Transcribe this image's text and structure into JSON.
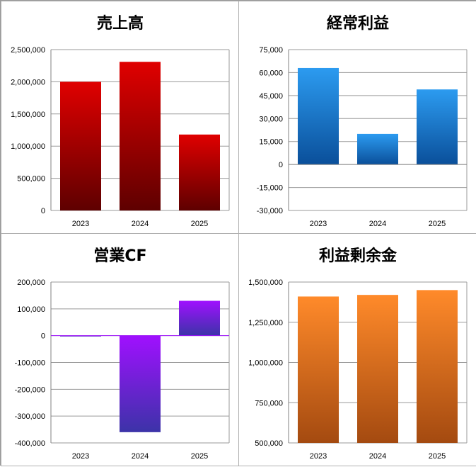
{
  "chart_data": [
    {
      "type": "bar",
      "title": "売上高",
      "categories": [
        "2023",
        "2024",
        "2025"
      ],
      "values": [
        2000000,
        2310000,
        1180000
      ],
      "ylim": [
        0,
        2500000
      ],
      "yticks": [
        "2,500,000",
        "2,000,000",
        "1,500,000",
        "1,000,000",
        "500,000",
        "0"
      ],
      "colors": {
        "top": "#e00000",
        "bottom": "#5e0000"
      },
      "grid": true
    },
    {
      "type": "bar",
      "title": "経常利益",
      "categories": [
        "2023",
        "2024",
        "2025"
      ],
      "values": [
        63000,
        20000,
        49000
      ],
      "ylim": [
        -30000,
        75000
      ],
      "yticks": [
        "75,000",
        "60,000",
        "45,000",
        "30,000",
        "15,000",
        "0",
        "-15,000",
        "-30,000"
      ],
      "colors": {
        "top": "#2c9bf0",
        "bottom": "#0a4f9a"
      },
      "grid": true
    },
    {
      "type": "bar",
      "title": "営業CF",
      "categories": [
        "2023",
        "2024",
        "2025"
      ],
      "values": [
        -3000,
        -360000,
        130000
      ],
      "ylim": [
        -400000,
        200000
      ],
      "yticks": [
        "200,000",
        "100,000",
        "0",
        "-100,000",
        "-200,000",
        "-300,000",
        "-400,000"
      ],
      "colors": {
        "top": "#a010ff",
        "bottom": "#3c33a8"
      },
      "grid": true
    },
    {
      "type": "bar",
      "title": "利益剰余金",
      "categories": [
        "2023",
        "2024",
        "2025"
      ],
      "values": [
        1410000,
        1420000,
        1450000
      ],
      "ylim": [
        500000,
        1500000
      ],
      "yticks": [
        "1,500,000",
        "1,250,000",
        "1,000,000",
        "750,000",
        "500,000"
      ],
      "colors": {
        "top": "#ff8a2a",
        "bottom": "#a44a10"
      },
      "grid": true
    }
  ]
}
